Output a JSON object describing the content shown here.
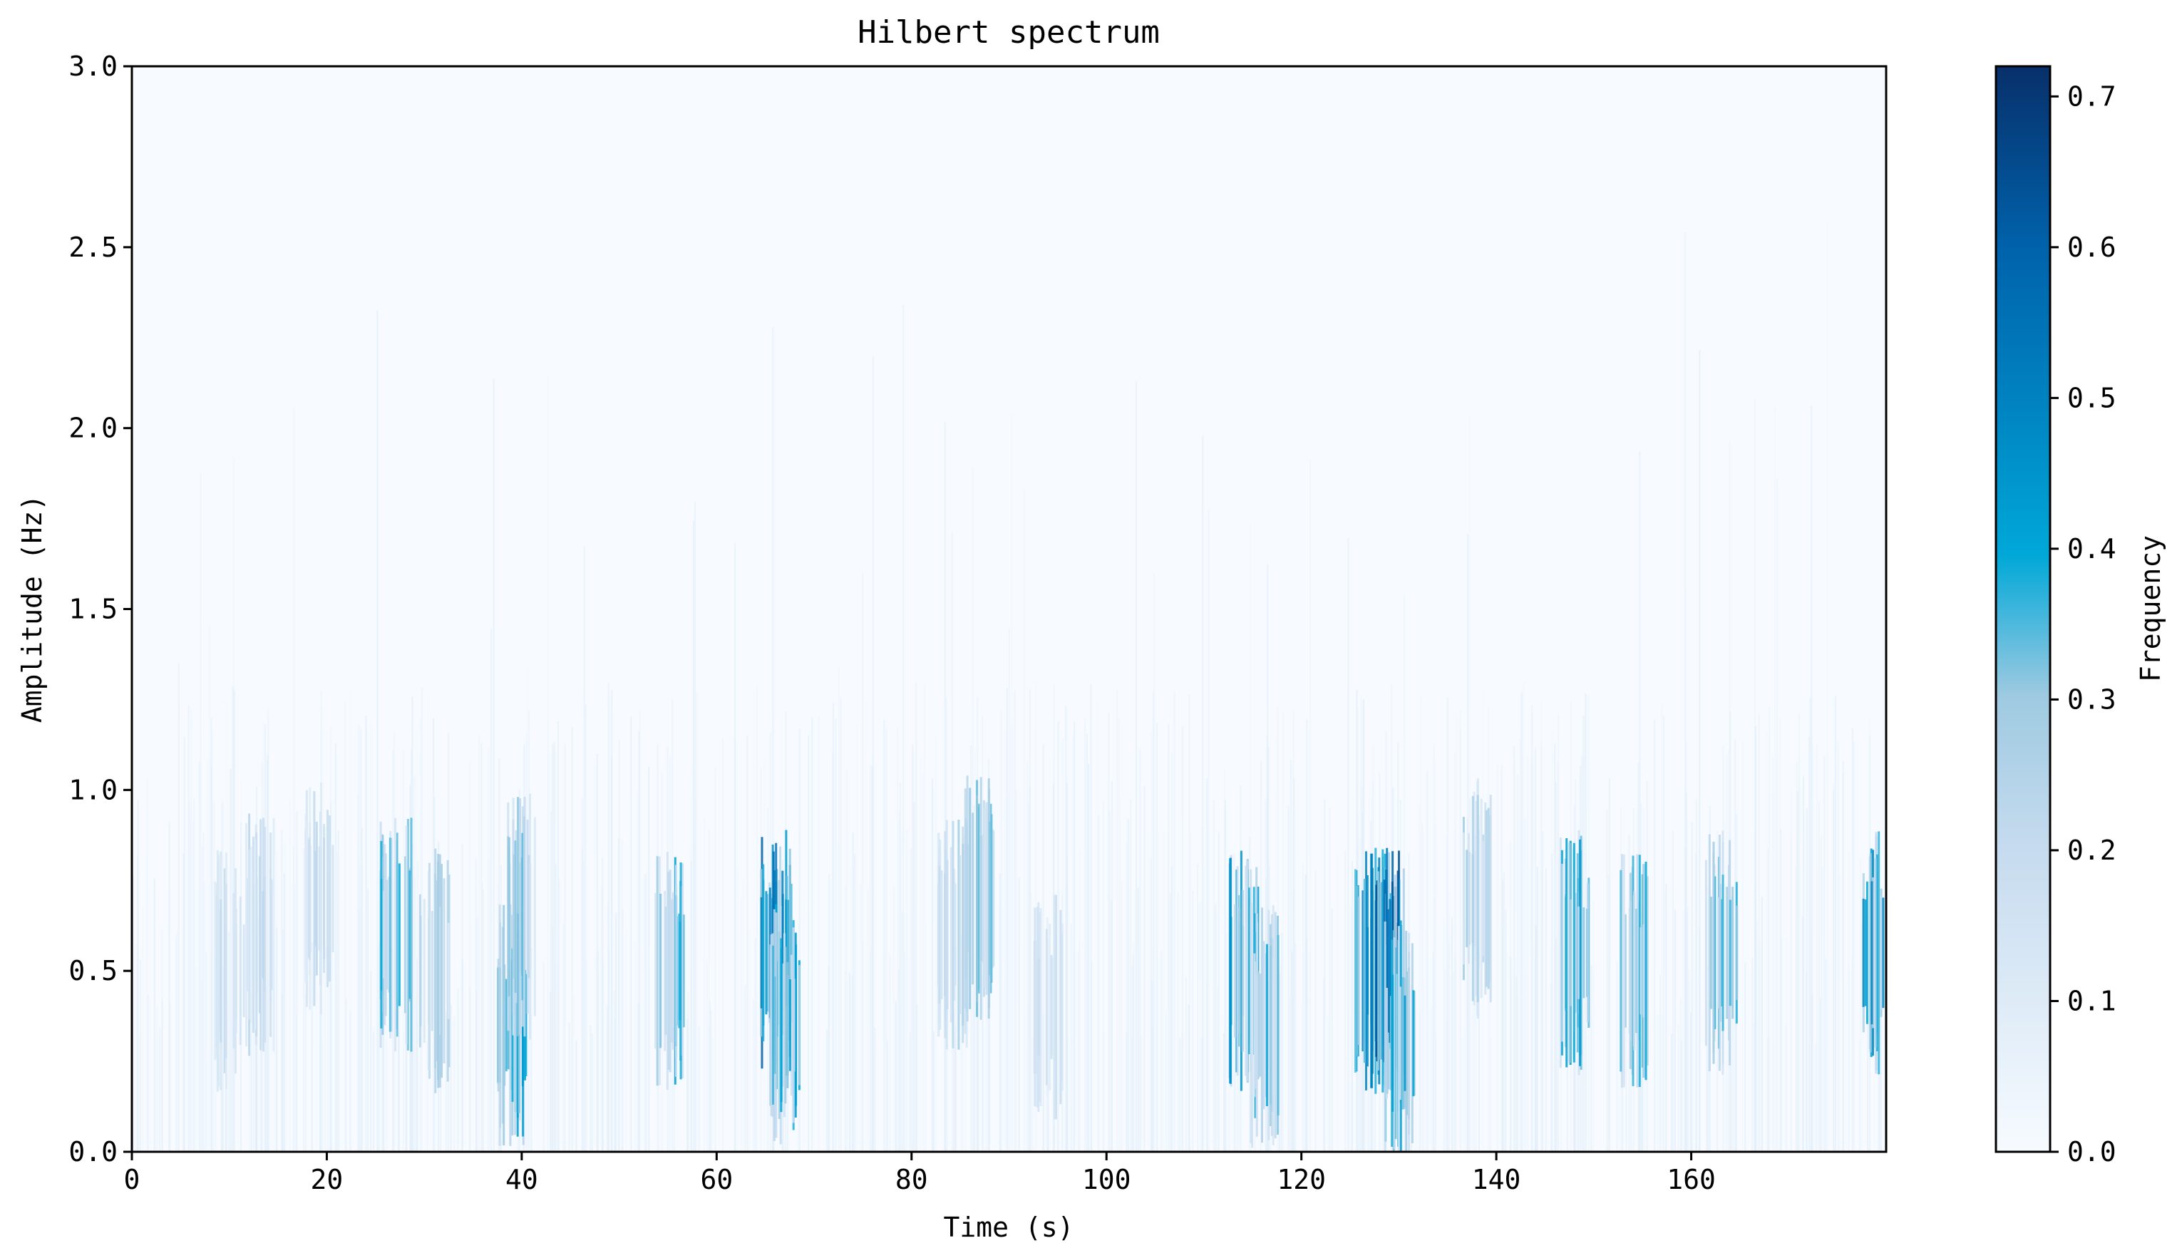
{
  "chart_data": {
    "type": "heatmap",
    "title": "Hilbert spectrum",
    "xlabel": "Time (s)",
    "ylabel": "Amplitude (Hz)",
    "xlim": [
      0,
      180
    ],
    "ylim": [
      0,
      3.0
    ],
    "x_ticks": [
      "0",
      "20",
      "40",
      "60",
      "80",
      "100",
      "120",
      "140",
      "160"
    ],
    "x_tick_values": [
      0,
      20,
      40,
      60,
      80,
      100,
      120,
      140,
      160
    ],
    "y_ticks": [
      "0.0",
      "0.5",
      "1.0",
      "1.5",
      "2.0",
      "2.5",
      "3.0"
    ],
    "y_tick_values": [
      0,
      0.5,
      1.0,
      1.5,
      2.0,
      2.5,
      3.0
    ],
    "colorbar": {
      "label": "Frequency",
      "range": [
        0,
        0.72
      ],
      "ticks": [
        "0.0",
        "0.1",
        "0.2",
        "0.3",
        "0.4",
        "0.5",
        "0.6",
        "0.7"
      ],
      "tick_values": [
        0,
        0.1,
        0.2,
        0.3,
        0.4,
        0.5,
        0.6,
        0.7
      ],
      "colormap": "Blues",
      "colors": [
        "#f7fbff",
        "#deebf7",
        "#c6dbef",
        "#9ecae1",
        "#6baed6",
        "#4292c6",
        "#2171b5",
        "#08519c",
        "#08306b"
      ]
    },
    "grid": false,
    "hotspots": [
      {
        "time": 10,
        "amplitude": 0.5,
        "intensity": 0.22
      },
      {
        "time": 13,
        "amplitude": 0.6,
        "intensity": 0.25
      },
      {
        "time": 19,
        "amplitude": 0.7,
        "intensity": 0.25
      },
      {
        "time": 27,
        "amplitude": 0.6,
        "intensity": 0.4
      },
      {
        "time": 31,
        "amplitude": 0.5,
        "intensity": 0.3
      },
      {
        "time": 39,
        "amplitude": 0.35,
        "intensity": 0.45
      },
      {
        "time": 40,
        "amplitude": 0.65,
        "intensity": 0.35
      },
      {
        "time": 55,
        "amplitude": 0.5,
        "intensity": 0.42
      },
      {
        "time": 66,
        "amplitude": 0.55,
        "intensity": 0.62
      },
      {
        "time": 67,
        "amplitude": 0.35,
        "intensity": 0.45
      },
      {
        "time": 84,
        "amplitude": 0.6,
        "intensity": 0.3
      },
      {
        "time": 87,
        "amplitude": 0.7,
        "intensity": 0.35
      },
      {
        "time": 94,
        "amplitude": 0.4,
        "intensity": 0.2
      },
      {
        "time": 114,
        "amplitude": 0.5,
        "intensity": 0.48
      },
      {
        "time": 116,
        "amplitude": 0.35,
        "intensity": 0.4
      },
      {
        "time": 127,
        "amplitude": 0.5,
        "intensity": 0.55
      },
      {
        "time": 129,
        "amplitude": 0.5,
        "intensity": 0.72
      },
      {
        "time": 130,
        "amplitude": 0.3,
        "intensity": 0.45
      },
      {
        "time": 138,
        "amplitude": 0.7,
        "intensity": 0.3
      },
      {
        "time": 148,
        "amplitude": 0.55,
        "intensity": 0.45
      },
      {
        "time": 154,
        "amplitude": 0.5,
        "intensity": 0.4
      },
      {
        "time": 163,
        "amplitude": 0.55,
        "intensity": 0.38
      },
      {
        "time": 179,
        "amplitude": 0.55,
        "intensity": 0.5
      }
    ]
  }
}
